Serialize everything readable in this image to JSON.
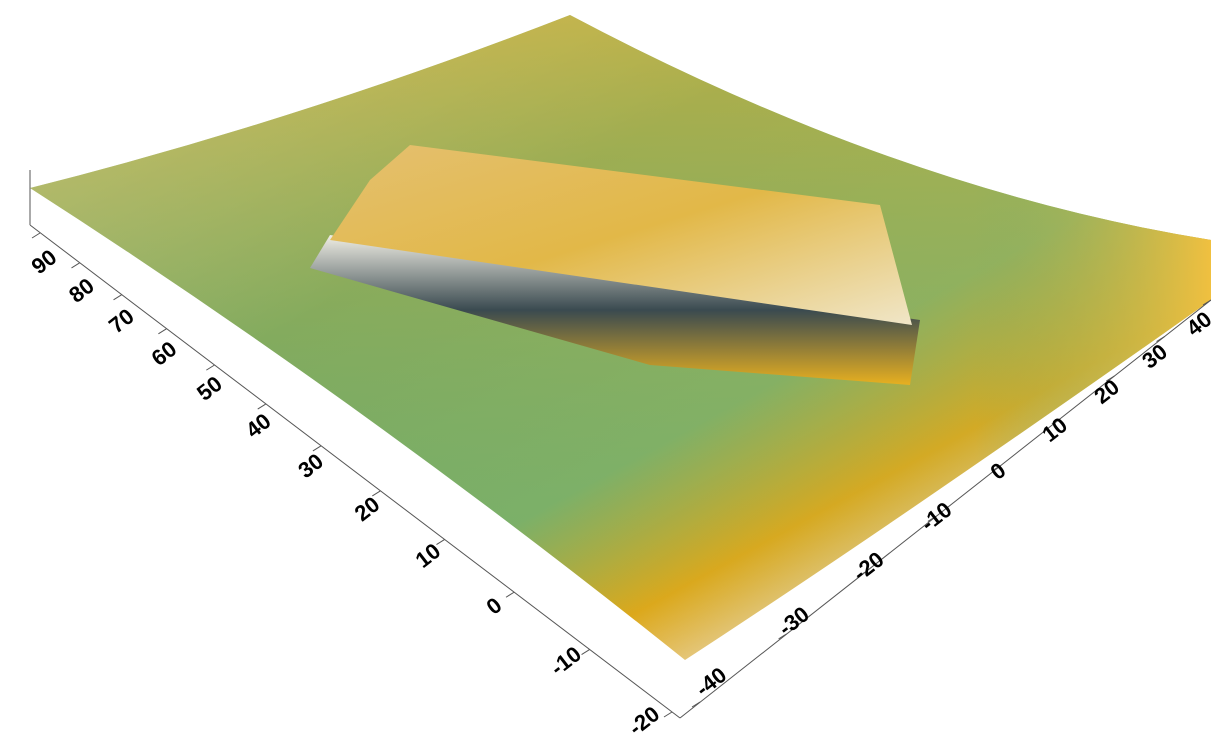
{
  "chart_data": {
    "type": "surface",
    "yticks": [
      -20,
      -10,
      0,
      10,
      20,
      30,
      40,
      50,
      60,
      70,
      80,
      90
    ],
    "ylim": [
      -20,
      90
    ],
    "xticks": [
      -40,
      -30,
      -20,
      -10,
      0,
      10,
      20,
      30,
      40
    ],
    "xlim": [
      -40,
      40
    ]
  }
}
